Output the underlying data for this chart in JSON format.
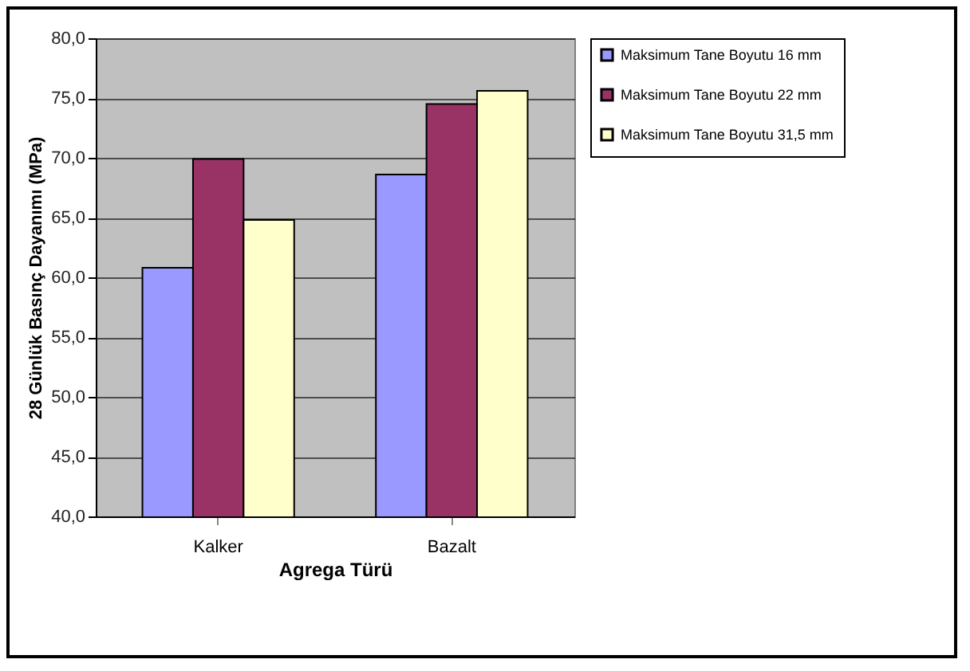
{
  "chart_data": {
    "type": "bar",
    "xlabel": "Agrega Türü",
    "ylabel": "28 Günlük Basınç Dayanımı (MPa)",
    "categories": [
      "Kalker",
      "Bazalt"
    ],
    "series": [
      {
        "name": "Maksimum Tane Boyutu 16 mm",
        "color": "#9999ff",
        "values": [
          60.8,
          68.6
        ]
      },
      {
        "name": "Maksimum Tane Boyutu 22 mm",
        "color": "#993366",
        "values": [
          69.9,
          74.5
        ]
      },
      {
        "name": "Maksimum Tane Boyutu 31,5 mm",
        "color": "#ffffcc",
        "values": [
          64.8,
          75.6
        ]
      }
    ],
    "ylim": [
      40,
      80
    ],
    "yticks": [
      {
        "value": 40,
        "label": "40,0"
      },
      {
        "value": 45,
        "label": "45,0"
      },
      {
        "value": 50,
        "label": "50,0"
      },
      {
        "value": 55,
        "label": "55,0"
      },
      {
        "value": 60,
        "label": "60,0"
      },
      {
        "value": 65,
        "label": "65,0"
      },
      {
        "value": 70,
        "label": "70,0"
      },
      {
        "value": 75,
        "label": "75,0"
      },
      {
        "value": 80,
        "label": "80,0"
      }
    ],
    "grid": "y",
    "legend": "right"
  }
}
